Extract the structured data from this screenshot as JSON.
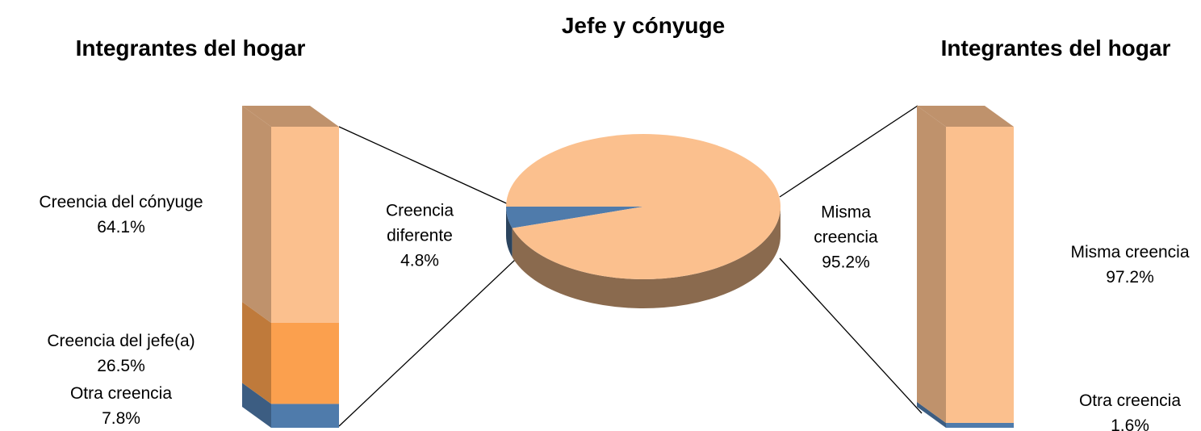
{
  "chart_data": [
    {
      "type": "bar",
      "stacked": true,
      "title": "Integrantes del hogar",
      "categories": [
        "Otra creencia",
        "Creencia del jefe(a)",
        "Creencia del cónyuge"
      ],
      "values": [
        7.8,
        26.5,
        64.1
      ],
      "value_labels": [
        "7.8%",
        "26.5%",
        "64.1%"
      ],
      "colors": [
        "#4f7bab",
        "#fba04e",
        "#fbc08e"
      ]
    },
    {
      "type": "pie",
      "title": "Jefe y cónyuge",
      "categories": [
        "Creencia diferente",
        "Misma creencia"
      ],
      "values": [
        4.8,
        95.2
      ],
      "value_labels": [
        "4.8%",
        "95.2%"
      ],
      "colors": [
        "#4f7bab",
        "#fbc08e"
      ]
    },
    {
      "type": "bar",
      "stacked": true,
      "title": "Integrantes del hogar",
      "categories": [
        "Otra creencia",
        "Misma creencia"
      ],
      "values": [
        1.6,
        97.2
      ],
      "value_labels": [
        "1.6%",
        "97.2%"
      ],
      "colors": [
        "#4f7bab",
        "#fbc08e"
      ]
    }
  ]
}
